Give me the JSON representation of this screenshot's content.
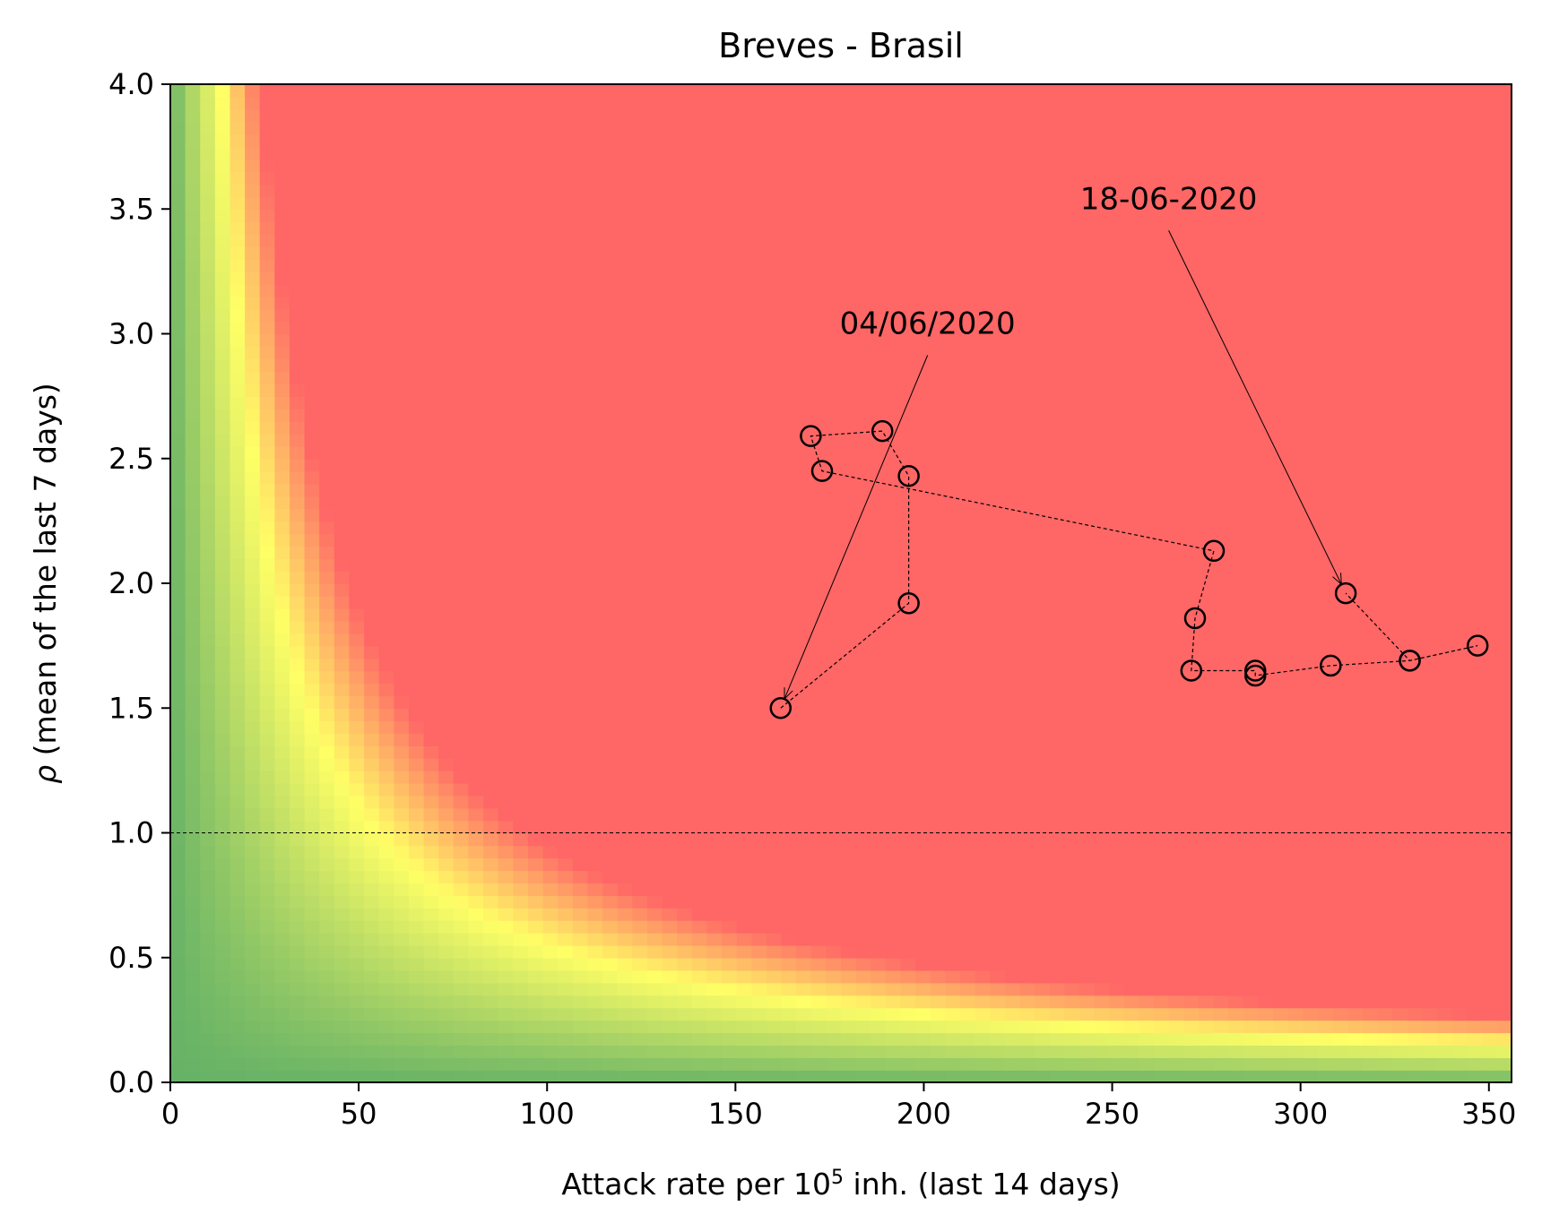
{
  "chart_data": {
    "type": "scatter",
    "title": "Breves - Brasil",
    "xlabel": {
      "prefix": "Attack rate per 10",
      "superscript": "5",
      "suffix": " inh. (last 14 days)"
    },
    "ylabel": {
      "symbol": "ρ",
      "text": " (mean of the last 7 days)"
    },
    "xlim": [
      0,
      356
    ],
    "ylim": [
      0,
      4.0
    ],
    "xticks": [
      0,
      50,
      100,
      150,
      200,
      250,
      300,
      350
    ],
    "xtick_labels": [
      "0",
      "50",
      "100",
      "150",
      "200",
      "250",
      "300",
      "350"
    ],
    "yticks": [
      0,
      0.5,
      1.0,
      1.5,
      2.0,
      2.5,
      3.0,
      3.5,
      4.0
    ],
    "ytick_labels": [
      "0.0",
      "0.5",
      "1.0",
      "1.5",
      "2.0",
      "2.5",
      "3.0",
      "3.5",
      "4.0"
    ],
    "reference_line": {
      "y": 1.0,
      "style": "dashed",
      "color": "#000000"
    },
    "background": {
      "type": "risk-heatmap",
      "metric": "attack_rate × rho",
      "colors": {
        "low": "#66b266",
        "mid": "#ffff66",
        "high": "#ff6666"
      }
    },
    "grid": false,
    "legend": "none",
    "series": [
      {
        "marker": "open-circle",
        "line": "dashed",
        "color": "#000000",
        "points": [
          {
            "x": 162,
            "y": 1.5
          },
          {
            "x": 196,
            "y": 1.92
          },
          {
            "x": 196,
            "y": 2.43
          },
          {
            "x": 189,
            "y": 2.61
          },
          {
            "x": 170,
            "y": 2.59
          },
          {
            "x": 173,
            "y": 2.45
          },
          {
            "x": 277,
            "y": 2.13
          },
          {
            "x": 272,
            "y": 1.86
          },
          {
            "x": 271,
            "y": 1.65
          },
          {
            "x": 288,
            "y": 1.65
          },
          {
            "x": 288,
            "y": 1.63
          },
          {
            "x": 308,
            "y": 1.67
          },
          {
            "x": 329,
            "y": 1.69
          },
          {
            "x": 347,
            "y": 1.75
          },
          {
            "x": 329,
            "y": 1.69
          },
          {
            "x": 312,
            "y": 1.96
          }
        ]
      }
    ],
    "annotations": [
      {
        "text": "04/06/2020",
        "x": 162,
        "y": 1.5,
        "text_x": 201,
        "text_y": 3.0
      },
      {
        "text": "18-06-2020",
        "x": 312,
        "y": 1.96,
        "text_x": 265,
        "text_y": 3.5
      }
    ]
  }
}
